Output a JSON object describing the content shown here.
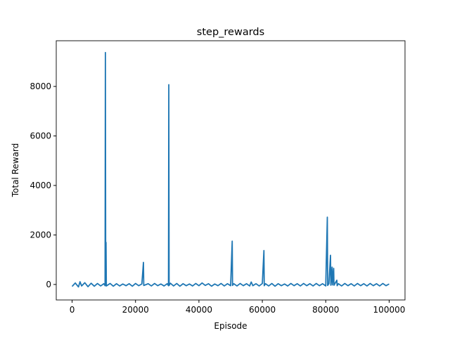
{
  "chart_data": {
    "type": "line",
    "title": "step_rewards",
    "x_label": "Episode",
    "y_label": "Total Reward",
    "color": "#1f77b4",
    "x": [
      0,
      1000,
      2000,
      2500,
      3000,
      4000,
      5000,
      6000,
      7000,
      8000,
      9000,
      10000,
      10400,
      10500,
      10600,
      10700,
      10800,
      12000,
      13000,
      14000,
      15000,
      16000,
      17000,
      18000,
      19000,
      20000,
      21000,
      22000,
      22500,
      22600,
      24000,
      25000,
      26000,
      27000,
      28000,
      29000,
      30000,
      30400,
      30500,
      30600,
      31000,
      32000,
      33000,
      34000,
      35000,
      36000,
      37000,
      38000,
      39000,
      40000,
      41000,
      42000,
      43000,
      44000,
      45000,
      46000,
      47000,
      48000,
      49000,
      50000,
      50500,
      50600,
      51000,
      52000,
      53000,
      54000,
      55000,
      56000,
      56500,
      57000,
      58000,
      59000,
      60000,
      60500,
      60600,
      61000,
      62000,
      63000,
      64000,
      65000,
      66000,
      67000,
      68000,
      69000,
      70000,
      71000,
      72000,
      73000,
      74000,
      75000,
      76000,
      77000,
      78000,
      79000,
      80000,
      80500,
      80600,
      81000,
      81500,
      81600,
      82000,
      82100,
      82500,
      82600,
      83500,
      83600,
      84000,
      85000,
      86000,
      87000,
      88000,
      89000,
      90000,
      91000,
      92000,
      93000,
      94000,
      95000,
      96000,
      97000,
      98000,
      99000,
      100000
    ],
    "values": [
      -80,
      60,
      -100,
      110,
      -60,
      70,
      -90,
      50,
      -70,
      40,
      -60,
      30,
      -50,
      9370,
      -40,
      1700,
      -60,
      40,
      -70,
      30,
      -60,
      20,
      -50,
      30,
      -70,
      40,
      -50,
      20,
      890,
      -40,
      30,
      -60,
      40,
      -50,
      20,
      -60,
      30,
      -50,
      8070,
      -40,
      50,
      -60,
      40,
      -70,
      30,
      -50,
      20,
      -60,
      40,
      -50,
      60,
      -40,
      30,
      -70,
      20,
      -50,
      40,
      -60,
      30,
      -50,
      1750,
      -40,
      30,
      -60,
      40,
      -50,
      30,
      -60,
      100,
      -50,
      30,
      -60,
      40,
      1370,
      -50,
      30,
      -60,
      40,
      -70,
      30,
      -50,
      20,
      -60,
      40,
      -50,
      30,
      -60,
      40,
      -50,
      30,
      -60,
      40,
      -50,
      30,
      -60,
      2720,
      -40,
      30,
      1180,
      -30,
      700,
      -20,
      650,
      -30,
      170,
      -50,
      30,
      -60,
      40,
      -50,
      30,
      -60,
      40,
      -50,
      30,
      -60,
      40,
      -50,
      30,
      -60,
      40,
      -50,
      20
    ],
    "xlim": [
      -5000,
      105000
    ],
    "xticks": [
      0,
      20000,
      40000,
      60000,
      80000,
      100000
    ],
    "ylim": [
      -626,
      9846
    ],
    "yticks": [
      0,
      2000,
      4000,
      6000,
      8000
    ]
  }
}
